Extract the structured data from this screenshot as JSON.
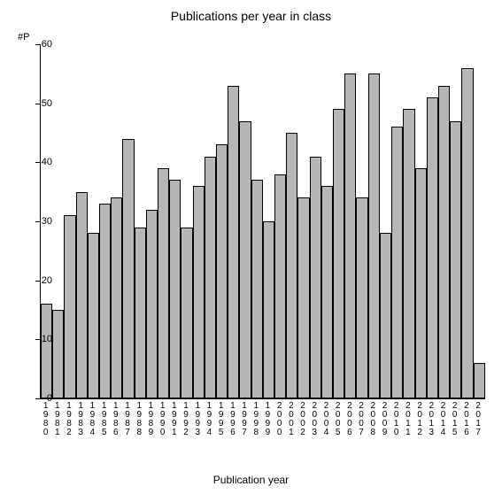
{
  "chart": {
    "type": "bar",
    "title": "Publications per year in class",
    "title_fontsize": 14,
    "y_axis_top_label": "#P",
    "x_axis_label": "Publication year",
    "label_fontsize": 12,
    "tick_fontsize": 11,
    "background_color": "#ffffff",
    "bar_fill": "#b7b7b7",
    "bar_border": "#000000",
    "axis_color": "#000000",
    "ylim": [
      0,
      60
    ],
    "ytick_step": 10,
    "yticks": [
      0,
      10,
      20,
      30,
      40,
      50,
      60
    ],
    "categories": [
      "1980",
      "1981",
      "1982",
      "1983",
      "1984",
      "1985",
      "1986",
      "1987",
      "1988",
      "1989",
      "1990",
      "1991",
      "1992",
      "1993",
      "1994",
      "1995",
      "1996",
      "1997",
      "1998",
      "1999",
      "2000",
      "2001",
      "2002",
      "2003",
      "2004",
      "2005",
      "2006",
      "2007",
      "2008",
      "2009",
      "2010",
      "2011",
      "2012",
      "2013",
      "2014",
      "2015",
      "2016",
      "2017"
    ],
    "values": [
      16,
      15,
      31,
      35,
      28,
      33,
      34,
      44,
      29,
      32,
      39,
      37,
      29,
      36,
      41,
      43,
      53,
      47,
      37,
      30,
      38,
      45,
      34,
      41,
      36,
      49,
      55,
      34,
      55,
      28,
      46,
      49,
      39,
      51,
      53,
      47,
      56,
      6
    ]
  }
}
